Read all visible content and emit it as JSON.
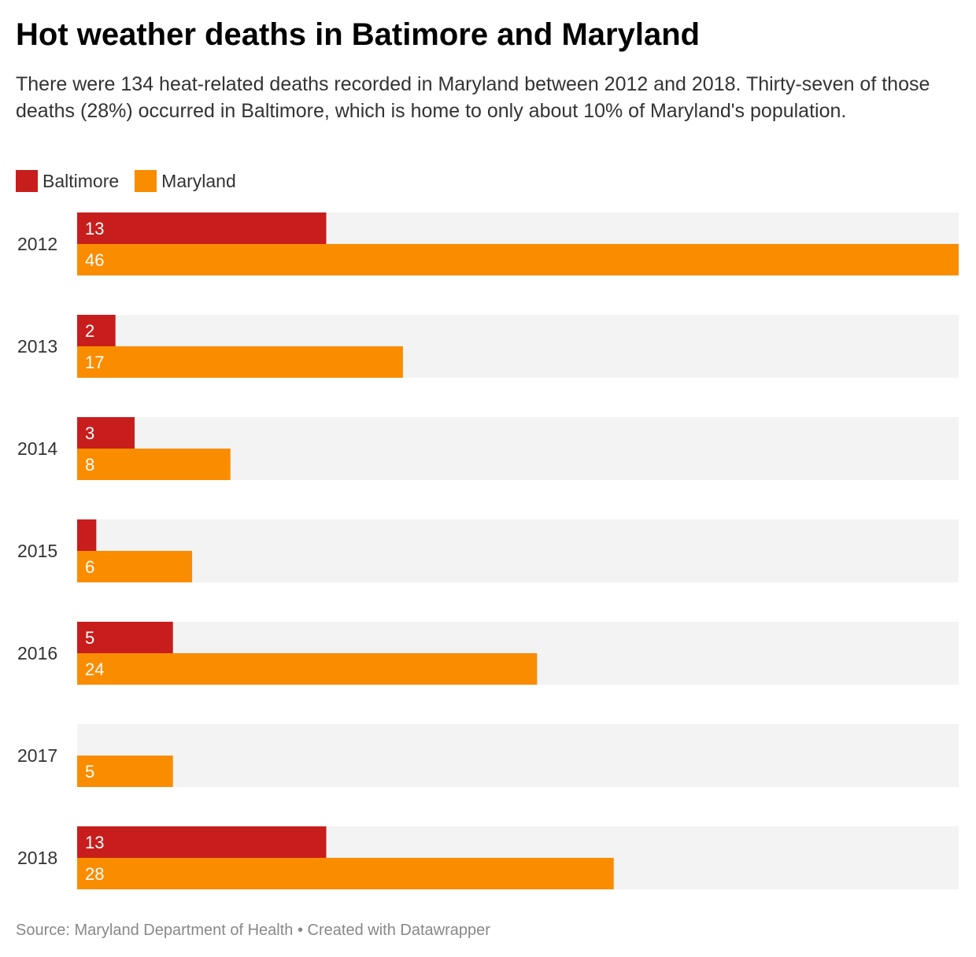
{
  "title": "Hot weather deaths in Batimore and Maryland",
  "subtitle": "There were 134 heat-related deaths recorded in Maryland between 2012 and 2018. Thirty-seven of those deaths (28%) occurred in Baltimore, which is home to only about 10% of Maryland's population.",
  "footer": {
    "source": "Source: Maryland Department of Health",
    "separator": "•",
    "credit": "Created with Datawrapper"
  },
  "colors": {
    "baltimore": "#c71e1d",
    "maryland": "#fa8c00",
    "track": "#f3f3f3",
    "label_text": "#ffffff",
    "axis_text": "#333333"
  },
  "chart_data": {
    "type": "bar",
    "orientation": "horizontal",
    "categories": [
      "2012",
      "2013",
      "2014",
      "2015",
      "2016",
      "2017",
      "2018"
    ],
    "series": [
      {
        "name": "Baltimore",
        "values": [
          13,
          2,
          3,
          1,
          5,
          0,
          13
        ],
        "labels": [
          "13",
          "2",
          "3",
          "",
          "5",
          "",
          "13"
        ]
      },
      {
        "name": "Maryland",
        "values": [
          46,
          17,
          8,
          6,
          24,
          5,
          28
        ],
        "labels": [
          "46",
          "17",
          "8",
          "6",
          "24",
          "5",
          "28"
        ]
      }
    ],
    "xlim": [
      0,
      46
    ],
    "legend_position": "top-left",
    "grid": false
  }
}
